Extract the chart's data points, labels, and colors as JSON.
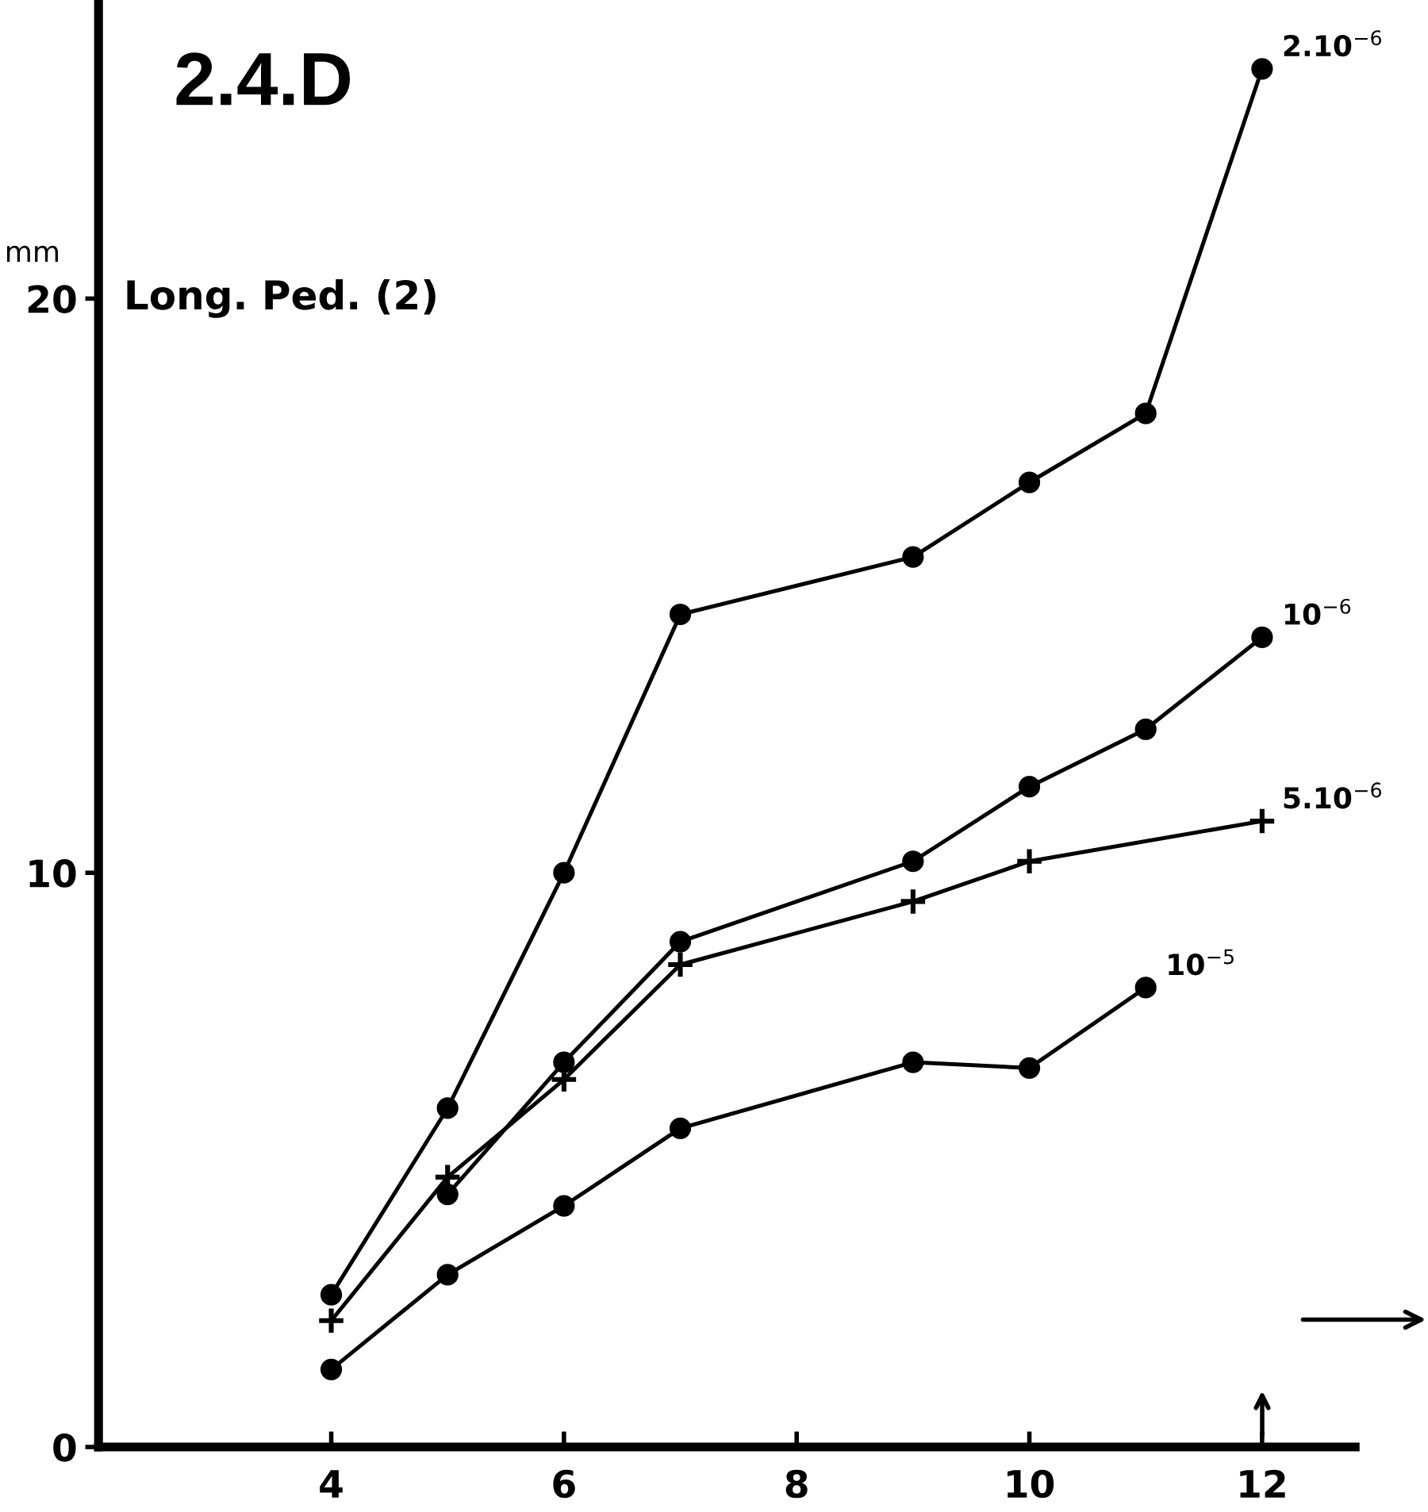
{
  "chart_data": {
    "type": "line",
    "title": "2.4.D",
    "subtitle": "Long. Ped. (2)",
    "ylabel": "mm",
    "xlim": [
      2,
      12.8
    ],
    "ylim": [
      0,
      25.2
    ],
    "xticks": [
      4,
      6,
      8,
      10,
      12
    ],
    "yticks": [
      0,
      10,
      20
    ],
    "grid": false,
    "legend": false,
    "line_style": "solid",
    "series": [
      {
        "name": "2.10$^{−6}$",
        "color": "#000000",
        "marker": "circle",
        "x": [
          4,
          5,
          6,
          7,
          9,
          10,
          11,
          12
        ],
        "values": [
          2.65,
          5.9,
          10.0,
          14.5,
          15.5,
          16.8,
          18.0,
          24.0
        ]
      },
      {
        "name": "10$^{−6}$",
        "color": "#000000",
        "marker": "circle",
        "x": [
          5,
          6,
          7,
          9,
          10,
          11,
          12
        ],
        "values": [
          4.4,
          6.7,
          8.8,
          10.2,
          11.5,
          12.5,
          14.1
        ]
      },
      {
        "name": "5.10$^{−6}$",
        "color": "#000000",
        "marker": "cross",
        "x": [
          4,
          5,
          6,
          7,
          9,
          10,
          12
        ],
        "values": [
          2.2,
          4.7,
          6.4,
          8.4,
          9.5,
          10.2,
          10.9
        ]
      },
      {
        "name": "10$^{−5}$",
        "color": "#000000",
        "marker": "circle",
        "x": [
          4,
          5,
          6,
          7,
          9,
          10,
          11
        ],
        "values": [
          1.35,
          3.0,
          4.2,
          5.55,
          6.7,
          6.6,
          8.0
        ]
      }
    ]
  }
}
